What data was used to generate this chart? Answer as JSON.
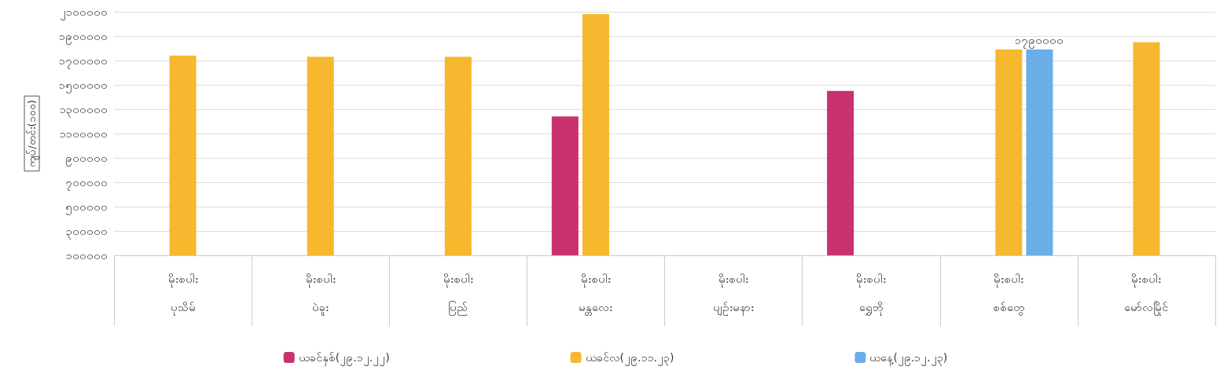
{
  "chart_data": {
    "type": "bar",
    "ylabel": "ကျပ်/တင်း(၁၀၀)",
    "categories": [
      "မိုးစပါး\nပုသိမ်",
      "မိုးစပါး\nပဲခူး",
      "မိုးစပါး\nပြည်",
      "မိုးစပါး\nမန္တလေး",
      "မိုးစပါး\nပျဉ်းမနား",
      "မိုးစပါး\nရွှေဘို",
      "မိုးစပါး\nစစ်တွေ",
      "မိုးစပါး\nမော်လမြိုင်"
    ],
    "series": [
      {
        "name": "ယခင်နှစ်(၂၉.၁၂.၂၂)",
        "color": "#c8326e",
        "values": [
          null,
          null,
          null,
          1240000,
          null,
          1450000,
          null,
          null
        ]
      },
      {
        "name": "ယခင်လ(၂၉.၁၁.၂၃)",
        "color": "#f5b82e",
        "values": [
          1740000,
          1730000,
          1730000,
          2080000,
          null,
          null,
          1790000,
          1850000
        ]
      },
      {
        "name": "ယနေ့(၂၉.၁၂.၂၃)",
        "color": "#6aaee8",
        "values": [
          null,
          null,
          null,
          null,
          null,
          null,
          1790000,
          null
        ],
        "value_labels": [
          null,
          null,
          null,
          null,
          null,
          null,
          "၁၇၉၀၀၀၀",
          null
        ]
      }
    ],
    "ylim": [
      100000,
      2100000
    ],
    "yticks": [
      {
        "value": 100000,
        "label": "၁၀၀၀၀၀"
      },
      {
        "value": 300000,
        "label": "၃၀၀၀၀၀"
      },
      {
        "value": 500000,
        "label": "၅၀၀၀၀၀"
      },
      {
        "value": 700000,
        "label": "၇၀၀၀၀၀"
      },
      {
        "value": 900000,
        "label": "၉၀၀၀၀၀"
      },
      {
        "value": 1100000,
        "label": "၁၁၀၀၀၀၀"
      },
      {
        "value": 1300000,
        "label": "၁၃၀၀၀၀၀"
      },
      {
        "value": 1500000,
        "label": "၁၅၀၀၀၀၀"
      },
      {
        "value": 1700000,
        "label": "၁၇၀၀၀၀၀"
      },
      {
        "value": 1900000,
        "label": "၁၉၀၀၀၀၀"
      },
      {
        "value": 2100000,
        "label": "၂၁၀၀၀၀၀"
      }
    ],
    "grid": "y",
    "legend": "bottom"
  }
}
